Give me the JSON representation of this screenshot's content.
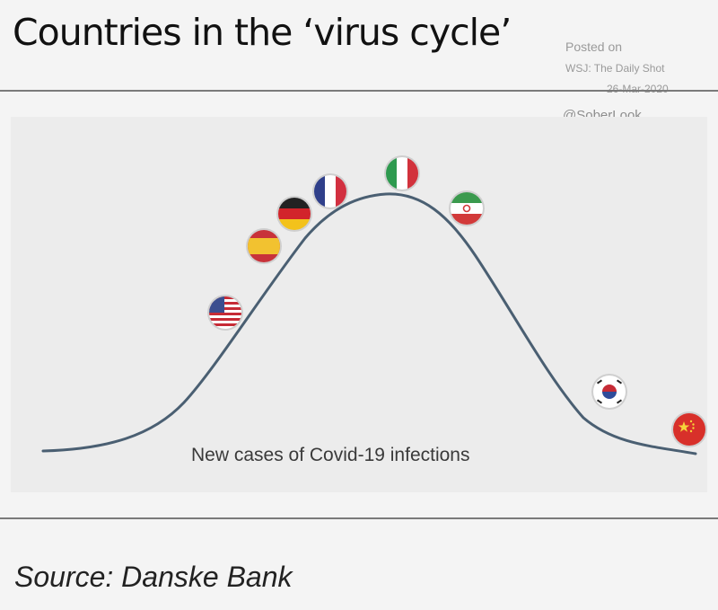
{
  "header": {
    "title": "Countries in the ‘virus cycle’"
  },
  "watermark": {
    "posted_on": "Posted on",
    "source": "WSJ: The Daily Shot",
    "date": "26-Mar-2020",
    "handle": "@SoberLook"
  },
  "diagram": {
    "curve_label": "New cases of Covid-19 infections",
    "curve_color": "#4a5f72",
    "flags": [
      {
        "country": "United States",
        "icon": "us-flag"
      },
      {
        "country": "Spain",
        "icon": "spain-flag"
      },
      {
        "country": "Germany",
        "icon": "germany-flag"
      },
      {
        "country": "France",
        "icon": "france-flag"
      },
      {
        "country": "Italy",
        "icon": "italy-flag"
      },
      {
        "country": "Iran",
        "icon": "iran-flag"
      },
      {
        "country": "South Korea",
        "icon": "south-korea-flag"
      },
      {
        "country": "China",
        "icon": "china-flag"
      }
    ]
  },
  "footer": {
    "source": "Source: Danske Bank"
  }
}
